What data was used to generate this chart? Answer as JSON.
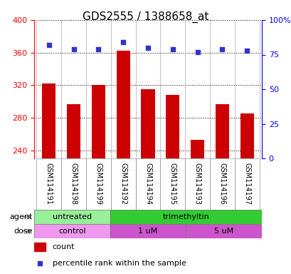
{
  "title": "GDS2555 / 1388658_at",
  "samples": [
    "GSM114191",
    "GSM114198",
    "GSM114199",
    "GSM114192",
    "GSM114194",
    "GSM114195",
    "GSM114193",
    "GSM114196",
    "GSM114197"
  ],
  "counts": [
    322,
    297,
    320,
    362,
    315,
    308,
    253,
    297,
    285
  ],
  "percentile_ranks": [
    82,
    79,
    79,
    84,
    80,
    79,
    77,
    79,
    78
  ],
  "ylim_left": [
    230,
    400
  ],
  "ylim_right": [
    0,
    100
  ],
  "yticks_left": [
    240,
    280,
    320,
    360,
    400
  ],
  "yticks_right": [
    0,
    25,
    50,
    75,
    100
  ],
  "ytick_labels_right": [
    "0",
    "25",
    "50",
    "75",
    "100%"
  ],
  "bar_color": "#cc0000",
  "dot_color": "#3333cc",
  "bar_bottom": 230,
  "agent_groups": [
    {
      "label": "untreated",
      "start": 0,
      "end": 3,
      "color": "#99ee99"
    },
    {
      "label": "trimethyltin",
      "start": 3,
      "end": 9,
      "color": "#33cc33"
    }
  ],
  "dose_groups": [
    {
      "label": "control",
      "start": 0,
      "end": 3,
      "color": "#ee99ee"
    },
    {
      "label": "1 uM",
      "start": 3,
      "end": 6,
      "color": "#cc55cc"
    },
    {
      "label": "5 uM",
      "start": 6,
      "end": 9,
      "color": "#cc55cc"
    }
  ],
  "background_color": "#ffffff",
  "sample_cell_color": "#cccccc",
  "title_fontsize": 11,
  "tick_fontsize": 8,
  "annotation_fontsize": 8,
  "sample_fontsize": 7,
  "legend_fontsize": 8
}
